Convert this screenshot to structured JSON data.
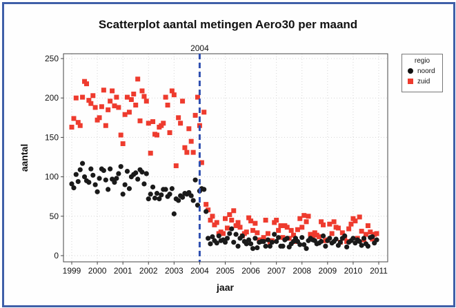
{
  "colors": {
    "noord": "#1a1a1a",
    "zuid": "#ee3b2e",
    "refline": "#2f4fb0",
    "frame": "#3f5fa8"
  },
  "chart_data": {
    "type": "scatter",
    "title": "Scatterplot aantal metingen Aero30 per maand",
    "xlabel": "jaar",
    "ylabel": "aantal",
    "xlim": [
      1999,
      2011
    ],
    "ylim": [
      0,
      250
    ],
    "x_ticks": [
      1999,
      2000,
      2001,
      2002,
      2003,
      2004,
      2005,
      2006,
      2007,
      2008,
      2009,
      2010,
      2011
    ],
    "y_ticks": [
      0,
      50,
      100,
      150,
      200,
      250
    ],
    "grid": true,
    "legend": {
      "title": "regio",
      "position": "right"
    },
    "reference_line": {
      "x": 2004,
      "label": "2004"
    },
    "series": [
      {
        "name": "noord",
        "marker": "circle",
        "x": [
          1999.0,
          1999.08,
          1999.17,
          1999.25,
          1999.33,
          1999.42,
          1999.5,
          1999.58,
          1999.67,
          1999.75,
          1999.83,
          1999.92,
          2000.0,
          2000.08,
          2000.17,
          2000.25,
          2000.33,
          2000.42,
          2000.5,
          2000.58,
          2000.67,
          2000.75,
          2000.83,
          2000.92,
          2001.0,
          2001.08,
          2001.17,
          2001.25,
          2001.33,
          2001.42,
          2001.5,
          2001.58,
          2001.67,
          2001.75,
          2001.83,
          2001.92,
          2002.0,
          2002.08,
          2002.17,
          2002.25,
          2002.33,
          2002.42,
          2002.5,
          2002.58,
          2002.67,
          2002.75,
          2002.83,
          2002.92,
          2003.0,
          2003.08,
          2003.17,
          2003.25,
          2003.33,
          2003.42,
          2003.5,
          2003.58,
          2003.67,
          2003.75,
          2003.83,
          2003.92,
          2004.0,
          2004.08,
          2004.17,
          2004.25,
          2004.33,
          2004.42,
          2004.5,
          2004.58,
          2004.67,
          2004.75,
          2004.83,
          2004.92,
          2005.0,
          2005.08,
          2005.17,
          2005.25,
          2005.33,
          2005.42,
          2005.5,
          2005.58,
          2005.67,
          2005.75,
          2005.83,
          2005.92,
          2006.0,
          2006.08,
          2006.17,
          2006.25,
          2006.33,
          2006.42,
          2006.5,
          2006.58,
          2006.67,
          2006.75,
          2006.83,
          2006.92,
          2007.0,
          2007.08,
          2007.17,
          2007.25,
          2007.33,
          2007.42,
          2007.5,
          2007.58,
          2007.67,
          2007.75,
          2007.83,
          2007.92,
          2008.0,
          2008.08,
          2008.17,
          2008.25,
          2008.33,
          2008.42,
          2008.5,
          2008.58,
          2008.67,
          2008.75,
          2008.83,
          2008.92,
          2009.0,
          2009.08,
          2009.17,
          2009.25,
          2009.33,
          2009.42,
          2009.5,
          2009.58,
          2009.67,
          2009.75,
          2009.83,
          2009.92,
          2010.0,
          2010.08,
          2010.17,
          2010.25,
          2010.33,
          2010.42,
          2010.5,
          2010.58,
          2010.67,
          2010.75,
          2010.83,
          2010.92
        ],
        "y": [
          91,
          86,
          103,
          94,
          109,
          117,
          100,
          95,
          93,
          110,
          102,
          90,
          81,
          98,
          110,
          108,
          96,
          84,
          110,
          97,
          93,
          98,
          104,
          113,
          78,
          90,
          107,
          85,
          100,
          103,
          105,
          97,
          109,
          106,
          91,
          104,
          72,
          78,
          87,
          73,
          79,
          72,
          77,
          84,
          84,
          75,
          78,
          85,
          53,
          72,
          70,
          76,
          74,
          79,
          78,
          80,
          76,
          70,
          96,
          64,
          82,
          85,
          84,
          56,
          22,
          15,
          24,
          19,
          16,
          25,
          19,
          20,
          17,
          22,
          28,
          34,
          17,
          27,
          12,
          22,
          25,
          18,
          15,
          20,
          15,
          9,
          22,
          10,
          17,
          18,
          18,
          12,
          20,
          12,
          17,
          27,
          18,
          23,
          12,
          12,
          20,
          22,
          11,
          15,
          18,
          22,
          18,
          14,
          23,
          14,
          9,
          19,
          22,
          20,
          19,
          15,
          16,
          18,
          25,
          12,
          19,
          22,
          16,
          18,
          21,
          13,
          17,
          22,
          25,
          11,
          17,
          19,
          22,
          16,
          20,
          18,
          13,
          22,
          15,
          12,
          23,
          24,
          16,
          20
        ]
      },
      {
        "name": "zuid",
        "marker": "square",
        "x": [
          1999.0,
          1999.08,
          1999.17,
          1999.25,
          1999.33,
          1999.42,
          1999.5,
          1999.58,
          1999.67,
          1999.75,
          1999.83,
          1999.92,
          2000.0,
          2000.08,
          2000.17,
          2000.25,
          2000.33,
          2000.42,
          2000.5,
          2000.58,
          2000.67,
          2000.75,
          2000.83,
          2000.92,
          2001.0,
          2001.08,
          2001.17,
          2001.25,
          2001.33,
          2001.42,
          2001.5,
          2001.58,
          2001.67,
          2001.75,
          2001.83,
          2001.92,
          2002.0,
          2002.08,
          2002.17,
          2002.25,
          2002.33,
          2002.42,
          2002.5,
          2002.58,
          2002.67,
          2002.75,
          2002.83,
          2002.92,
          2003.0,
          2003.08,
          2003.17,
          2003.25,
          2003.33,
          2003.42,
          2003.5,
          2003.58,
          2003.67,
          2003.75,
          2003.83,
          2003.92,
          2004.0,
          2004.08,
          2004.17,
          2004.25,
          2004.33,
          2004.42,
          2004.5,
          2004.58,
          2004.67,
          2004.75,
          2004.83,
          2004.92,
          2005.0,
          2005.08,
          2005.17,
          2005.25,
          2005.33,
          2005.42,
          2005.5,
          2005.58,
          2005.67,
          2005.75,
          2005.83,
          2005.92,
          2006.0,
          2006.08,
          2006.17,
          2006.25,
          2006.33,
          2006.42,
          2006.5,
          2006.58,
          2006.67,
          2006.75,
          2006.83,
          2006.92,
          2007.0,
          2007.08,
          2007.17,
          2007.25,
          2007.33,
          2007.42,
          2007.5,
          2007.58,
          2007.67,
          2007.75,
          2007.83,
          2007.92,
          2008.0,
          2008.08,
          2008.17,
          2008.25,
          2008.33,
          2008.42,
          2008.5,
          2008.58,
          2008.67,
          2008.75,
          2008.83,
          2008.92,
          2009.0,
          2009.08,
          2009.17,
          2009.25,
          2009.33,
          2009.42,
          2009.5,
          2009.58,
          2009.67,
          2009.75,
          2009.83,
          2009.92,
          2010.0,
          2010.08,
          2010.17,
          2010.25,
          2010.33,
          2010.42,
          2010.5,
          2010.58,
          2010.67,
          2010.75,
          2010.83,
          2010.92
        ],
        "y": [
          163,
          174,
          200,
          169,
          165,
          201,
          221,
          218,
          197,
          193,
          203,
          188,
          172,
          175,
          189,
          210,
          165,
          185,
          196,
          209,
          190,
          201,
          188,
          153,
          142,
          179,
          201,
          182,
          198,
          205,
          191,
          224,
          171,
          209,
          202,
          196,
          168,
          130,
          170,
          154,
          153,
          163,
          165,
          168,
          201,
          191,
          156,
          209,
          204,
          114,
          175,
          168,
          196,
          137,
          131,
          161,
          145,
          131,
          178,
          201,
          165,
          118,
          182,
          65,
          58,
          45,
          50,
          39,
          42,
          28,
          30,
          28,
          47,
          35,
          52,
          45,
          57,
          38,
          42,
          36,
          25,
          28,
          30,
          48,
          44,
          32,
          41,
          29,
          20,
          20,
          23,
          45,
          28,
          17,
          19,
          42,
          45,
          32,
          38,
          23,
          38,
          36,
          22,
          32,
          26,
          18,
          33,
          47,
          36,
          51,
          43,
          50,
          27,
          25,
          29,
          26,
          24,
          43,
          39,
          19,
          20,
          40,
          28,
          43,
          36,
          35,
          17,
          29,
          22,
          18,
          34,
          40,
          47,
          44,
          22,
          49,
          31,
          20,
          27,
          38,
          30,
          21,
          27,
          28
        ]
      }
    ]
  }
}
